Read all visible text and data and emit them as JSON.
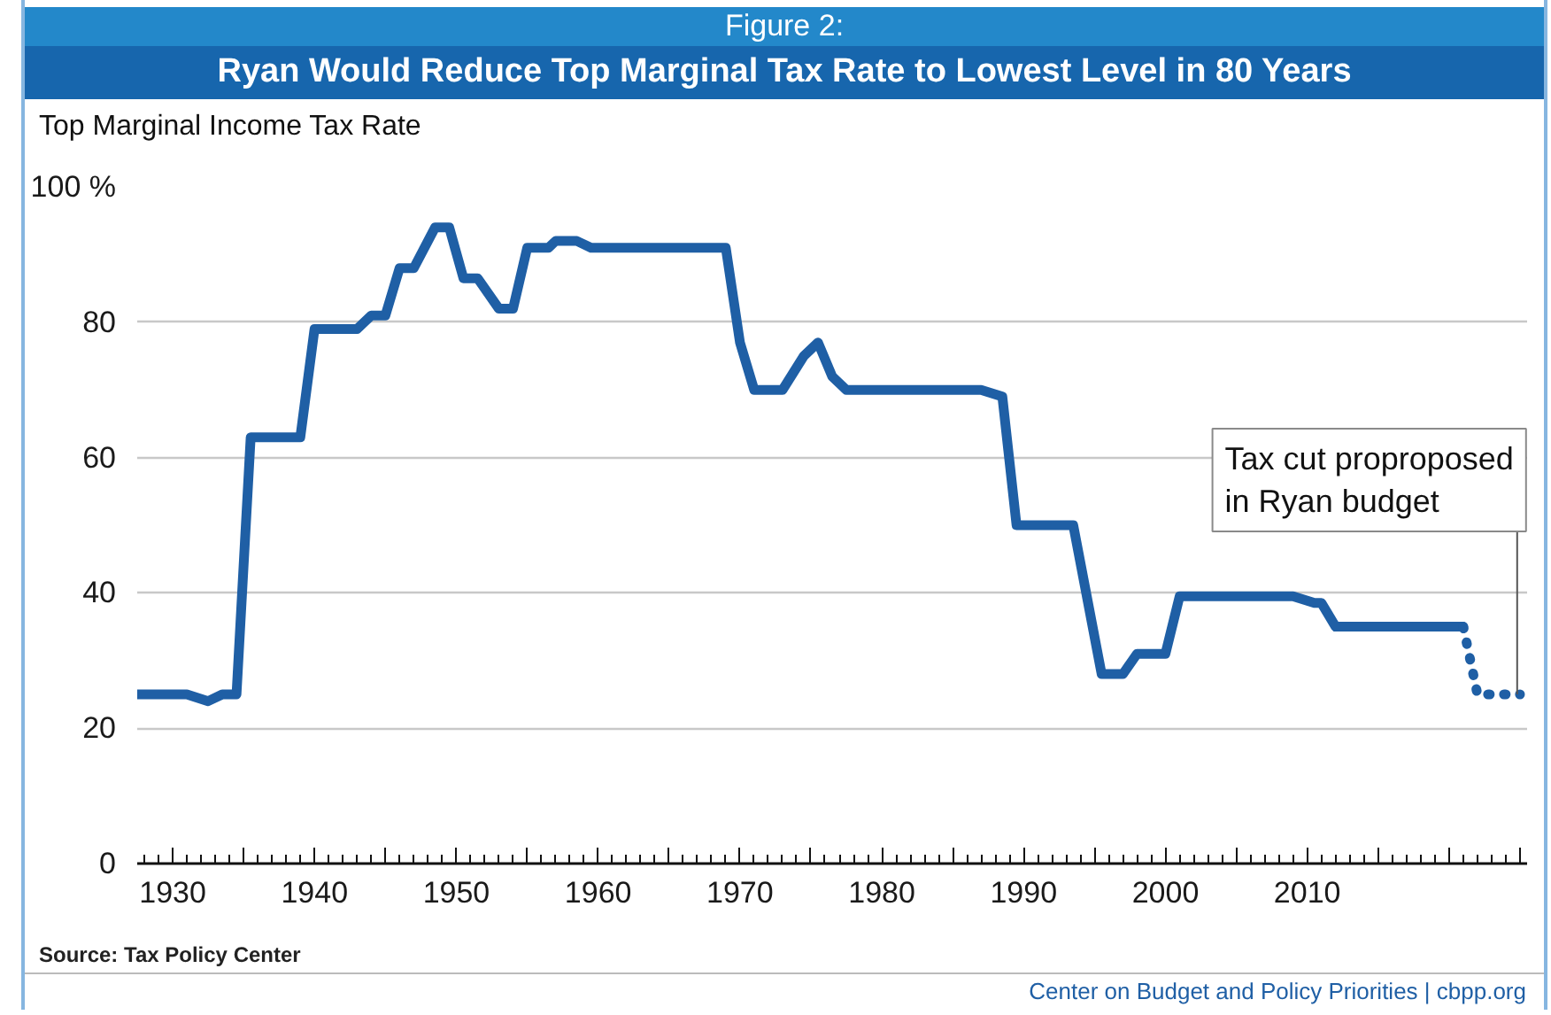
{
  "chart_data": {
    "type": "line",
    "title": "Figure 2:",
    "subtitle": "Ryan Would Reduce Top Marginal Tax Rate to Lowest Level in 80 Years",
    "ylabel": "Top Marginal Income Tax Rate",
    "xlim": [
      1927.5,
      2025.5
    ],
    "xticks": [
      1930,
      {
        "value": 1935,
        "label": null
      },
      1940,
      {
        "value": 1945,
        "label": null
      },
      1950,
      {
        "value": 1955,
        "label": null
      },
      1960,
      {
        "value": 1965,
        "label": null
      },
      1970,
      {
        "value": 1975,
        "label": null
      },
      1980,
      {
        "value": 1985,
        "label": null
      },
      1990,
      {
        "value": 1995,
        "label": null
      },
      2000,
      {
        "value": 2005,
        "label": null
      },
      2010,
      {
        "value": 2015,
        "label": null
      },
      {
        "value": 2020,
        "label": null
      },
      {
        "value": 2025,
        "label": null
      }
    ],
    "ylim": [
      0,
      100
    ],
    "yticks": [
      0,
      20,
      40,
      60,
      80,
      {
        "value": 100,
        "label": "100 %"
      }
    ],
    "grid": "y",
    "line_style": "solid",
    "series": [
      {
        "color": "#1f5fa5",
        "x": [
          1927.5,
          1931,
          1932.5,
          1933.5,
          1934.5,
          1935.5,
          1939,
          1940,
          1943,
          1944,
          1945,
          1946,
          1947,
          1948.5,
          1949.5,
          1950.5,
          1951.5,
          1953,
          1954,
          1955,
          1956.5,
          1957,
          1958.5,
          1959.5,
          1969,
          1970,
          1971,
          1973,
          1974.5,
          1975.5,
          1976.5,
          1977.5,
          1987,
          1988.5,
          1989.5,
          1993.5,
          1995.5,
          1997,
          1998,
          2000,
          2001,
          2009,
          2010.5,
          2011,
          2012,
          2021
        ],
        "values": [
          25,
          25,
          24,
          25,
          25,
          63,
          63,
          79,
          79,
          81,
          81,
          88,
          88,
          94,
          94,
          86.5,
          86.5,
          82,
          82,
          91,
          91,
          92,
          92,
          91,
          91,
          77,
          70,
          70,
          75,
          77,
          72,
          70,
          70,
          69,
          50,
          50,
          28,
          28,
          31,
          31,
          39.5,
          39.5,
          38.5,
          38.5,
          35,
          35
        ]
      },
      {
        "color": "#1f5fa5",
        "line_style": "dotted",
        "x": [
          2021,
          2022,
          2025
        ],
        "values": [
          35,
          25,
          25
        ]
      }
    ],
    "annotations": [
      {
        "text": "Tax cut proproposed\nin Ryan budget",
        "x": 2024.8,
        "y": 25
      },
      "Source: Tax Policy Center",
      "Center on Budget and Policy Priorities | cbpp.org"
    ]
  }
}
